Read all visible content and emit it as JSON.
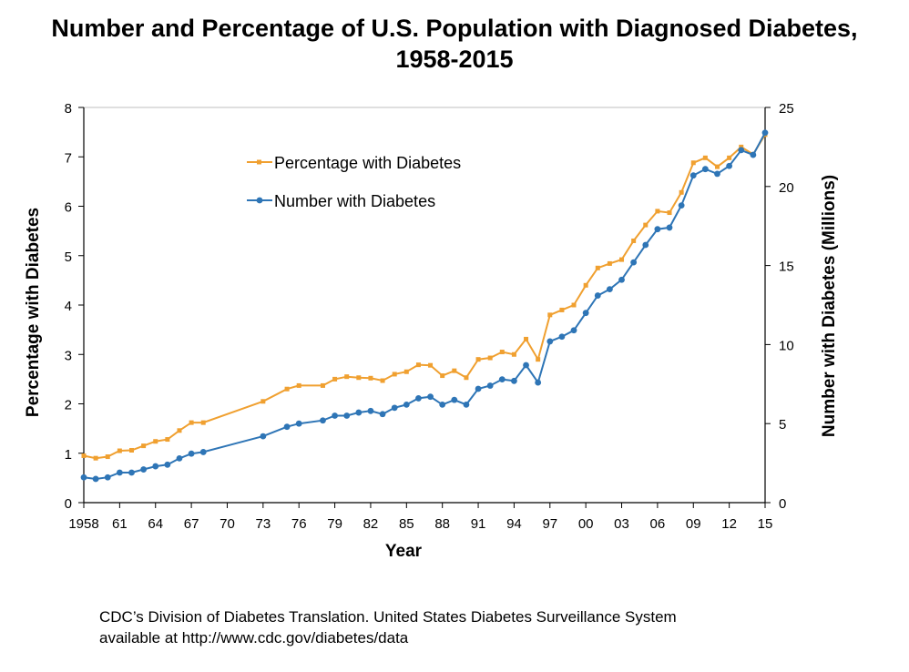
{
  "title": {
    "line1": "Number and Percentage of U.S. Population with Diagnosed Diabetes,",
    "line2": "1958-2015"
  },
  "source": {
    "line1": "CDC’s Division of Diabetes Translation. United States Diabetes Surveillance System",
    "line2": "available at http://www.cdc.gov/diabetes/data"
  },
  "chart_data": {
    "type": "line",
    "title": "Number and Percentage of U.S. Population with Diagnosed Diabetes, 1958-2015",
    "xlabel": "Year",
    "ylabel_left": "Percentage with Diabetes",
    "ylabel_right": "Number with Diabetes (Millions)",
    "xlim": [
      1958,
      2015
    ],
    "ylim_left": [
      0,
      8
    ],
    "ylim_right": [
      0,
      25
    ],
    "yticks_left": [
      "0",
      "1",
      "2",
      "3",
      "4",
      "5",
      "6",
      "7",
      "8"
    ],
    "yticks_right": [
      "0",
      "5",
      "10",
      "15",
      "20",
      "25"
    ],
    "xticks": [
      {
        "year": 1958,
        "label": "1958"
      },
      {
        "year": 1961,
        "label": "61"
      },
      {
        "year": 1964,
        "label": "64"
      },
      {
        "year": 1967,
        "label": "67"
      },
      {
        "year": 1970,
        "label": "70"
      },
      {
        "year": 1973,
        "label": "73"
      },
      {
        "year": 1976,
        "label": "76"
      },
      {
        "year": 1979,
        "label": "79"
      },
      {
        "year": 1982,
        "label": "82"
      },
      {
        "year": 1985,
        "label": "85"
      },
      {
        "year": 1988,
        "label": "88"
      },
      {
        "year": 1991,
        "label": "91"
      },
      {
        "year": 1994,
        "label": "94"
      },
      {
        "year": 1997,
        "label": "97"
      },
      {
        "year": 2000,
        "label": "00"
      },
      {
        "year": 2003,
        "label": "03"
      },
      {
        "year": 2006,
        "label": "06"
      },
      {
        "year": 2009,
        "label": "09"
      },
      {
        "year": 2012,
        "label": "12"
      },
      {
        "year": 2015,
        "label": "15"
      }
    ],
    "legend_position": "upper-left inside",
    "grid": false,
    "series": [
      {
        "name": "Percentage with Diabetes",
        "axis": "left",
        "color": "#F0A030",
        "marker": "square",
        "x": [
          1958,
          1959,
          1960,
          1961,
          1962,
          1963,
          1964,
          1965,
          1966,
          1967,
          1968,
          1973,
          1975,
          1976,
          1978,
          1979,
          1980,
          1981,
          1982,
          1983,
          1984,
          1985,
          1986,
          1987,
          1988,
          1989,
          1990,
          1991,
          1992,
          1993,
          1994,
          1995,
          1996,
          1997,
          1998,
          1999,
          2000,
          2001,
          2002,
          2003,
          2004,
          2005,
          2006,
          2007,
          2008,
          2009,
          2010,
          2011,
          2012,
          2013,
          2014,
          2015
        ],
        "values": [
          0.95,
          0.9,
          0.93,
          1.05,
          1.06,
          1.15,
          1.24,
          1.28,
          1.46,
          1.62,
          1.62,
          2.05,
          2.3,
          2.37,
          2.37,
          2.5,
          2.55,
          2.53,
          2.52,
          2.47,
          2.6,
          2.65,
          2.79,
          2.78,
          2.57,
          2.67,
          2.53,
          2.9,
          2.93,
          3.05,
          3.0,
          3.31,
          2.9,
          3.8,
          3.9,
          4.0,
          4.4,
          4.75,
          4.84,
          4.92,
          5.3,
          5.62,
          5.9,
          5.87,
          6.28,
          6.88,
          6.98,
          6.8,
          6.98,
          7.2,
          7.05,
          7.45
        ]
      },
      {
        "name": "Number with Diabetes",
        "axis": "right",
        "color": "#2E75B6",
        "marker": "circle",
        "x": [
          1958,
          1959,
          1960,
          1961,
          1962,
          1963,
          1964,
          1965,
          1966,
          1967,
          1968,
          1973,
          1975,
          1976,
          1978,
          1979,
          1980,
          1981,
          1982,
          1983,
          1984,
          1985,
          1986,
          1987,
          1988,
          1989,
          1990,
          1991,
          1992,
          1993,
          1994,
          1995,
          1996,
          1997,
          1998,
          1999,
          2000,
          2001,
          2002,
          2003,
          2004,
          2005,
          2006,
          2007,
          2008,
          2009,
          2010,
          2011,
          2012,
          2013,
          2014,
          2015
        ],
        "values": [
          1.6,
          1.5,
          1.6,
          1.9,
          1.9,
          2.1,
          2.3,
          2.4,
          2.8,
          3.1,
          3.2,
          4.2,
          4.8,
          5.0,
          5.2,
          5.5,
          5.5,
          5.7,
          5.8,
          5.6,
          6.0,
          6.2,
          6.6,
          6.7,
          6.2,
          6.5,
          6.2,
          7.2,
          7.4,
          7.8,
          7.7,
          8.7,
          7.6,
          10.2,
          10.5,
          10.9,
          12.0,
          13.1,
          13.5,
          14.1,
          15.2,
          16.3,
          17.3,
          17.4,
          18.8,
          20.7,
          21.1,
          20.8,
          21.3,
          22.3,
          22.0,
          23.4
        ]
      }
    ]
  }
}
